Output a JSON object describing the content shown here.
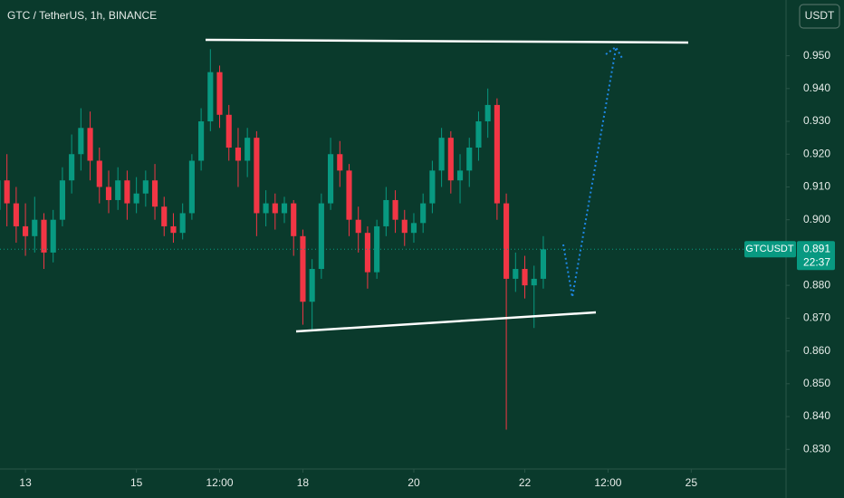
{
  "chart_data": {
    "type": "candlestick",
    "title": "GTC / TetherUS, 1h, BINANCE",
    "currency_button": "USDT",
    "symbol_label": "GTCUSDT",
    "last_price": 0.891,
    "countdown": "22:37",
    "up_color": "#089981",
    "down_color": "#f23645",
    "x": [
      -12,
      -8,
      -4,
      0,
      4,
      8,
      12,
      16,
      20,
      24,
      28,
      32,
      36,
      40,
      44,
      48,
      52,
      56,
      60,
      64,
      68,
      72,
      76,
      80,
      84,
      88,
      92,
      96,
      100,
      104,
      108,
      112,
      116,
      120,
      124,
      128,
      132,
      136,
      140,
      144,
      148,
      152,
      156,
      160,
      164,
      168,
      172,
      176,
      180,
      184,
      188,
      192,
      196,
      200,
      204,
      208,
      212,
      216,
      220,
      224
    ],
    "open": [
      0.903,
      0.912,
      0.905,
      0.898,
      0.895,
      0.9,
      0.89,
      0.9,
      0.912,
      0.92,
      0.928,
      0.918,
      0.91,
      0.906,
      0.912,
      0.905,
      0.908,
      0.912,
      0.904,
      0.898,
      0.896,
      0.902,
      0.918,
      0.93,
      0.945,
      0.932,
      0.922,
      0.918,
      0.925,
      0.902,
      0.905,
      0.902,
      0.905,
      0.895,
      0.875,
      0.885,
      0.905,
      0.92,
      0.915,
      0.9,
      0.896,
      0.884,
      0.898,
      0.906,
      0.9,
      0.896,
      0.899,
      0.905,
      0.915,
      0.925,
      0.912,
      0.915,
      0.922,
      0.93,
      0.935,
      0.905,
      0.882,
      0.885,
      0.88,
      0.882
    ],
    "high": [
      0.916,
      0.92,
      0.91,
      0.905,
      0.907,
      0.902,
      0.903,
      0.916,
      0.926,
      0.934,
      0.933,
      0.922,
      0.915,
      0.916,
      0.915,
      0.913,
      0.915,
      0.917,
      0.907,
      0.902,
      0.905,
      0.92,
      0.934,
      0.952,
      0.947,
      0.935,
      0.928,
      0.928,
      0.927,
      0.909,
      0.908,
      0.907,
      0.906,
      0.897,
      0.888,
      0.908,
      0.925,
      0.924,
      0.917,
      0.904,
      0.898,
      0.9,
      0.91,
      0.909,
      0.903,
      0.902,
      0.908,
      0.918,
      0.928,
      0.927,
      0.92,
      0.925,
      0.933,
      0.94,
      0.937,
      0.908,
      0.89,
      0.889,
      0.886,
      0.895
    ],
    "low": [
      0.9,
      0.898,
      0.893,
      0.889,
      0.89,
      0.885,
      0.887,
      0.898,
      0.908,
      0.915,
      0.912,
      0.905,
      0.902,
      0.903,
      0.9,
      0.902,
      0.904,
      0.9,
      0.895,
      0.893,
      0.894,
      0.9,
      0.915,
      0.927,
      0.928,
      0.918,
      0.91,
      0.913,
      0.895,
      0.898,
      0.897,
      0.899,
      0.889,
      0.868,
      0.866,
      0.882,
      0.903,
      0.91,
      0.895,
      0.89,
      0.879,
      0.882,
      0.895,
      0.896,
      0.892,
      0.893,
      0.896,
      0.902,
      0.91,
      0.908,
      0.905,
      0.91,
      0.918,
      0.925,
      0.9,
      0.836,
      0.878,
      0.876,
      0.867,
      0.879
    ],
    "close": [
      0.912,
      0.905,
      0.898,
      0.895,
      0.9,
      0.89,
      0.9,
      0.912,
      0.92,
      0.928,
      0.918,
      0.91,
      0.906,
      0.912,
      0.905,
      0.908,
      0.912,
      0.904,
      0.898,
      0.896,
      0.902,
      0.918,
      0.93,
      0.945,
      0.932,
      0.922,
      0.918,
      0.925,
      0.902,
      0.905,
      0.902,
      0.905,
      0.895,
      0.875,
      0.885,
      0.905,
      0.92,
      0.915,
      0.9,
      0.896,
      0.884,
      0.898,
      0.906,
      0.9,
      0.896,
      0.899,
      0.905,
      0.915,
      0.925,
      0.912,
      0.915,
      0.922,
      0.93,
      0.935,
      0.905,
      0.882,
      0.885,
      0.88,
      0.882,
      0.891
    ],
    "xlim": [
      -11,
      329
    ],
    "xticks": [
      {
        "value": 0,
        "label": "13"
      },
      {
        "value": 48,
        "label": "15"
      },
      {
        "value": 84,
        "label": "12:00"
      },
      {
        "value": 120,
        "label": "18"
      },
      {
        "value": 168,
        "label": "20"
      },
      {
        "value": 216,
        "label": "22"
      },
      {
        "value": 252,
        "label": "12:00"
      },
      {
        "value": 288,
        "label": "25"
      }
    ],
    "ylim": [
      0.824,
      0.967
    ],
    "yticks": [
      {
        "value": 0.83,
        "label": "0.830"
      },
      {
        "value": 0.84,
        "label": "0.840"
      },
      {
        "value": 0.85,
        "label": "0.850"
      },
      {
        "value": 0.86,
        "label": "0.860"
      },
      {
        "value": 0.87,
        "label": "0.870"
      },
      {
        "value": 0.88,
        "label": "0.880"
      },
      {
        "value": 0.89,
        "label": "0.890"
      },
      {
        "value": 0.9,
        "label": "0.900"
      },
      {
        "value": 0.91,
        "label": "0.910"
      },
      {
        "value": 0.92,
        "label": "0.920"
      },
      {
        "value": 0.93,
        "label": "0.930"
      },
      {
        "value": 0.94,
        "label": "0.940"
      },
      {
        "value": 0.95,
        "label": "0.950"
      }
    ]
  }
}
